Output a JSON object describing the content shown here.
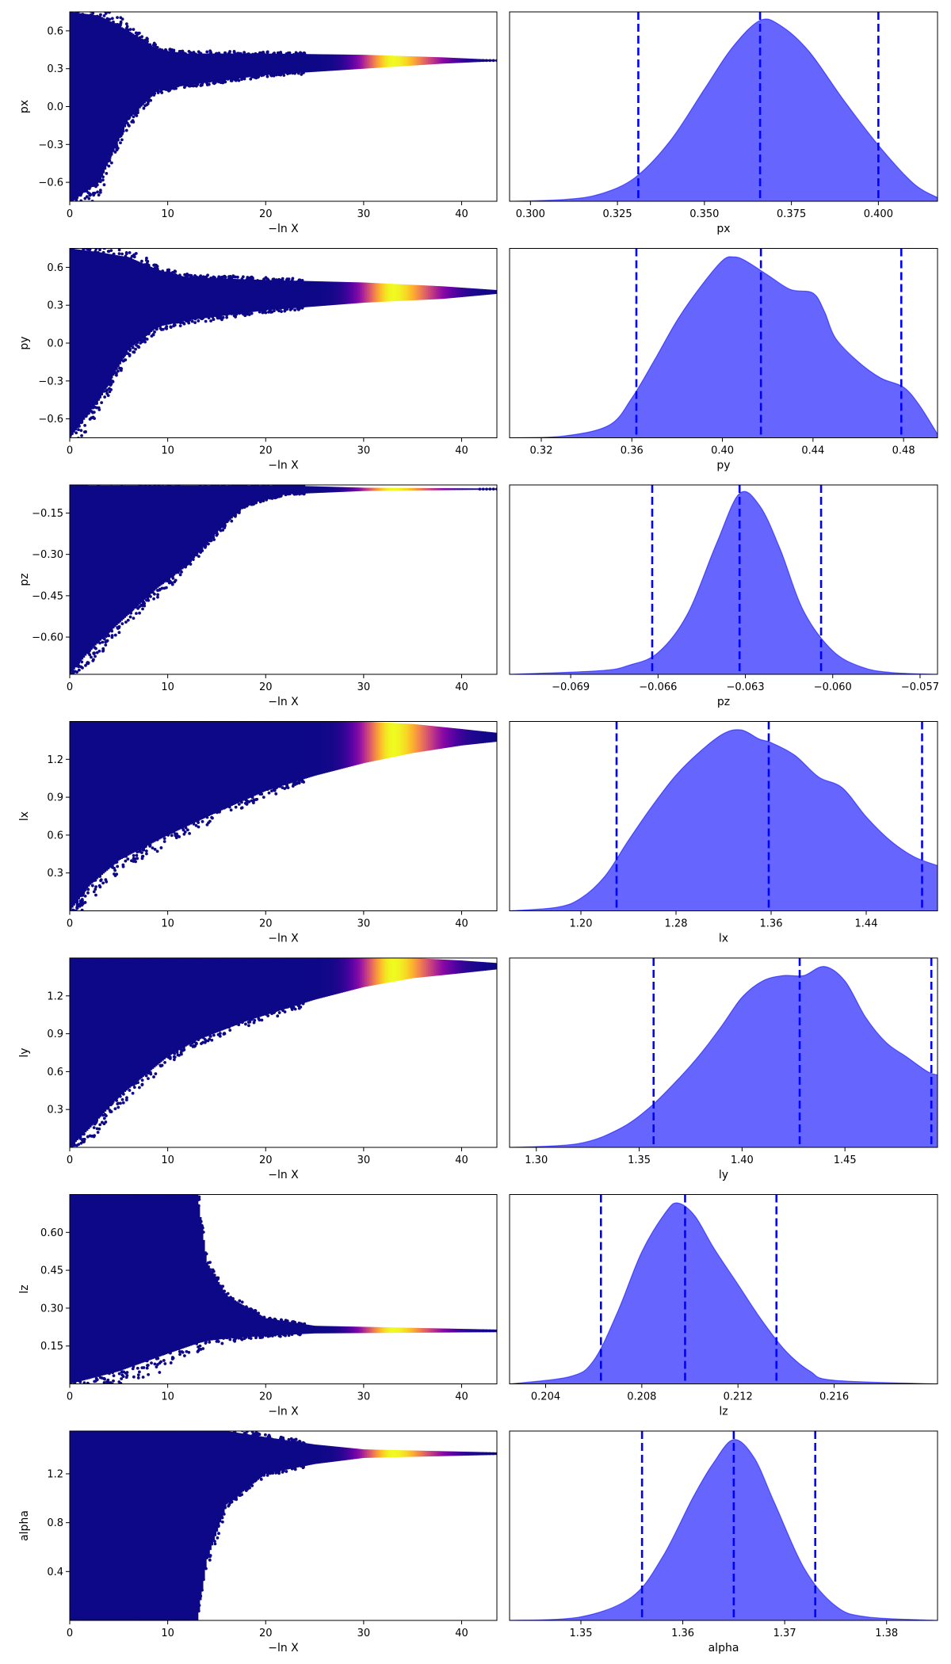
{
  "chart_data": [
    {
      "type": "scatter",
      "panel": "trace",
      "param": "px",
      "xlabel": "−ln X",
      "ylabel": "px",
      "xlim": [
        0,
        43.6
      ],
      "ylim": [
        -0.75,
        0.75
      ],
      "xticks": [
        0,
        10,
        20,
        30,
        40
      ],
      "xtick_labels": [
        "0",
        "10",
        "20",
        "30",
        "40"
      ],
      "yticks": [
        -0.6,
        -0.3,
        0.0,
        0.3,
        0.6
      ],
      "ytick_labels": [
        "−0.6",
        "−0.3",
        "0.0",
        "0.3",
        "0.6"
      ],
      "band": [
        [
          0,
          -0.75,
          0.75
        ],
        [
          3,
          -0.6,
          0.72
        ],
        [
          6,
          -0.1,
          0.6
        ],
        [
          9,
          0.13,
          0.45
        ],
        [
          12,
          0.17,
          0.42
        ],
        [
          20,
          0.25,
          0.42
        ],
        [
          30,
          0.3,
          0.41
        ],
        [
          38,
          0.34,
          0.39
        ],
        [
          43.6,
          0.36,
          0.37
        ]
      ],
      "colormap": "plasma",
      "density_peak_x": 33
    },
    {
      "type": "area",
      "panel": "marginal",
      "param": "px",
      "xlabel": "px",
      "xlim": [
        0.294,
        0.417
      ],
      "xticks": [
        0.3,
        0.325,
        0.35,
        0.375,
        0.4
      ],
      "xtick_labels": [
        "0.300",
        "0.325",
        "0.350",
        "0.375",
        "0.400"
      ],
      "x": [
        0.294,
        0.31,
        0.32,
        0.33,
        0.34,
        0.35,
        0.358,
        0.366,
        0.372,
        0.38,
        0.39,
        0.4,
        0.41,
        0.417
      ],
      "y": [
        0.0,
        0.01,
        0.04,
        0.13,
        0.33,
        0.62,
        0.85,
        1.0,
        0.97,
        0.83,
        0.56,
        0.31,
        0.1,
        0.02
      ],
      "quantiles": [
        0.331,
        0.366,
        0.4
      ],
      "fill_color": "#6666ff",
      "line_color": "#0000ff"
    },
    {
      "type": "scatter",
      "panel": "trace",
      "param": "py",
      "xlabel": "−ln X",
      "ylabel": "py",
      "xlim": [
        0,
        43.6
      ],
      "ylim": [
        -0.75,
        0.75
      ],
      "xticks": [
        0,
        10,
        20,
        30,
        40
      ],
      "xtick_labels": [
        "0",
        "10",
        "20",
        "30",
        "40"
      ],
      "yticks": [
        -0.6,
        -0.3,
        0.0,
        0.3,
        0.6
      ],
      "ytick_labels": [
        "−0.6",
        "−0.3",
        "0.0",
        "0.3",
        "0.6"
      ],
      "band": [
        [
          0,
          -0.75,
          0.75
        ],
        [
          3,
          -0.45,
          0.72
        ],
        [
          6,
          -0.05,
          0.68
        ],
        [
          9,
          0.13,
          0.58
        ],
        [
          12,
          0.18,
          0.52
        ],
        [
          20,
          0.26,
          0.5
        ],
        [
          30,
          0.32,
          0.48
        ],
        [
          38,
          0.35,
          0.45
        ],
        [
          43.6,
          0.39,
          0.42
        ]
      ],
      "colormap": "plasma",
      "density_peak_x": 33
    },
    {
      "type": "area",
      "panel": "marginal",
      "param": "py",
      "xlabel": "py",
      "xlim": [
        0.306,
        0.495
      ],
      "xticks": [
        0.32,
        0.36,
        0.4,
        0.44,
        0.48
      ],
      "xtick_labels": [
        "0.32",
        "0.36",
        "0.40",
        "0.44",
        "0.48"
      ],
      "x": [
        0.306,
        0.33,
        0.35,
        0.36,
        0.37,
        0.38,
        0.39,
        0.4,
        0.405,
        0.41,
        0.42,
        0.43,
        0.44,
        0.445,
        0.45,
        0.46,
        0.47,
        0.48,
        0.487,
        0.495
      ],
      "y": [
        0.0,
        0.01,
        0.07,
        0.22,
        0.43,
        0.65,
        0.83,
        0.98,
        1.0,
        0.98,
        0.9,
        0.82,
        0.8,
        0.7,
        0.55,
        0.42,
        0.33,
        0.28,
        0.18,
        0.02
      ],
      "quantiles": [
        0.362,
        0.417,
        0.479
      ],
      "fill_color": "#6666ff",
      "line_color": "#0000ff"
    },
    {
      "type": "scatter",
      "panel": "trace",
      "param": "pz",
      "xlabel": "−ln X",
      "ylabel": "pz",
      "xlim": [
        0,
        43.6
      ],
      "ylim": [
        -0.735,
        -0.048
      ],
      "xticks": [
        0,
        10,
        20,
        30,
        40
      ],
      "xtick_labels": [
        "0",
        "10",
        "20",
        "30",
        "40"
      ],
      "yticks": [
        -0.6,
        -0.45,
        -0.3,
        -0.15
      ],
      "ytick_labels": [
        "−0.60",
        "−0.45",
        "−0.30",
        "−0.15"
      ],
      "band": [
        [
          0,
          -0.735,
          -0.048
        ],
        [
          2,
          -0.65,
          -0.05
        ],
        [
          5,
          -0.55,
          -0.05
        ],
        [
          9,
          -0.42,
          -0.05
        ],
        [
          12,
          -0.34,
          -0.05
        ],
        [
          15,
          -0.22,
          -0.05
        ],
        [
          18,
          -0.12,
          -0.05
        ],
        [
          22,
          -0.082,
          -0.05
        ],
        [
          30,
          -0.07,
          -0.058
        ],
        [
          43.6,
          -0.065,
          -0.061
        ]
      ],
      "colormap": "plasma",
      "density_peak_x": 33
    },
    {
      "type": "area",
      "panel": "marginal",
      "param": "pz",
      "xlabel": "pz",
      "xlim": [
        -0.0711,
        -0.0564
      ],
      "xticks": [
        -0.069,
        -0.066,
        -0.063,
        -0.06,
        -0.057
      ],
      "xtick_labels": [
        "−0.069",
        "−0.066",
        "−0.063",
        "−0.060",
        "−0.057"
      ],
      "x": [
        -0.0711,
        -0.068,
        -0.067,
        -0.066,
        -0.065,
        -0.064,
        -0.0632,
        -0.0625,
        -0.0618,
        -0.061,
        -0.06,
        -0.059,
        -0.058,
        -0.0564
      ],
      "y": [
        0.0,
        0.02,
        0.05,
        0.12,
        0.33,
        0.72,
        1.0,
        0.93,
        0.69,
        0.35,
        0.13,
        0.04,
        0.01,
        0.0
      ],
      "quantiles": [
        -0.0662,
        -0.0632,
        -0.0604
      ],
      "fill_color": "#6666ff",
      "line_color": "#0000ff"
    },
    {
      "type": "scatter",
      "panel": "trace",
      "param": "lx",
      "xlabel": "−ln X",
      "ylabel": "lx",
      "xlim": [
        0,
        43.6
      ],
      "ylim": [
        0,
        1.5
      ],
      "xticks": [
        0,
        10,
        20,
        30,
        40
      ],
      "xtick_labels": [
        "0",
        "10",
        "20",
        "30",
        "40"
      ],
      "yticks": [
        0.3,
        0.6,
        0.9,
        1.2
      ],
      "ytick_labels": [
        "0.3",
        "0.6",
        "0.9",
        "1.2"
      ],
      "band": [
        [
          0,
          0.0,
          1.5
        ],
        [
          2,
          0.2,
          1.5
        ],
        [
          5,
          0.4,
          1.5
        ],
        [
          10,
          0.6,
          1.5
        ],
        [
          15,
          0.78,
          1.5
        ],
        [
          20,
          0.95,
          1.5
        ],
        [
          25,
          1.07,
          1.5
        ],
        [
          30,
          1.17,
          1.5
        ],
        [
          35,
          1.25,
          1.48
        ],
        [
          40,
          1.31,
          1.44
        ],
        [
          43.6,
          1.34,
          1.41
        ]
      ],
      "colormap": "plasma",
      "density_peak_x": 33
    },
    {
      "type": "area",
      "panel": "marginal",
      "param": "lx",
      "xlabel": "lx",
      "xlim": [
        1.14,
        1.5
      ],
      "xticks": [
        1.2,
        1.28,
        1.36,
        1.44
      ],
      "xtick_labels": [
        "1.20",
        "1.28",
        "1.36",
        "1.44"
      ],
      "x": [
        1.14,
        1.18,
        1.2,
        1.22,
        1.24,
        1.26,
        1.28,
        1.3,
        1.32,
        1.335,
        1.35,
        1.36,
        1.38,
        1.4,
        1.42,
        1.44,
        1.46,
        1.48,
        1.5
      ],
      "y": [
        0.0,
        0.02,
        0.07,
        0.19,
        0.39,
        0.58,
        0.75,
        0.88,
        0.98,
        1.0,
        0.95,
        0.93,
        0.86,
        0.74,
        0.68,
        0.52,
        0.39,
        0.3,
        0.25
      ],
      "quantiles": [
        1.23,
        1.358,
        1.487
      ],
      "fill_color": "#6666ff",
      "line_color": "#0000ff"
    },
    {
      "type": "scatter",
      "panel": "trace",
      "param": "ly",
      "xlabel": "−ln X",
      "ylabel": "ly",
      "xlim": [
        0,
        43.6
      ],
      "ylim": [
        0,
        1.5
      ],
      "xticks": [
        0,
        10,
        20,
        30,
        40
      ],
      "xtick_labels": [
        "0",
        "10",
        "20",
        "30",
        "40"
      ],
      "yticks": [
        0.3,
        0.6,
        0.9,
        1.2
      ],
      "ytick_labels": [
        "0.3",
        "0.6",
        "0.9",
        "1.2"
      ],
      "band": [
        [
          0,
          0.0,
          1.5
        ],
        [
          2,
          0.15,
          1.5
        ],
        [
          5,
          0.4,
          1.5
        ],
        [
          10,
          0.72,
          1.5
        ],
        [
          13,
          0.85,
          1.5
        ],
        [
          18,
          1.0,
          1.5
        ],
        [
          25,
          1.17,
          1.5
        ],
        [
          30,
          1.27,
          1.5
        ],
        [
          35,
          1.34,
          1.5
        ],
        [
          40,
          1.38,
          1.48
        ],
        [
          43.6,
          1.41,
          1.46
        ]
      ],
      "colormap": "plasma",
      "density_peak_x": 33
    },
    {
      "type": "area",
      "panel": "marginal",
      "param": "ly",
      "xlabel": "ly",
      "xlim": [
        1.287,
        1.495
      ],
      "xticks": [
        1.3,
        1.35,
        1.4,
        1.45
      ],
      "xtick_labels": [
        "1.30",
        "1.35",
        "1.40",
        "1.45"
      ],
      "x": [
        1.287,
        1.32,
        1.34,
        1.355,
        1.37,
        1.38,
        1.39,
        1.4,
        1.41,
        1.42,
        1.43,
        1.44,
        1.45,
        1.46,
        1.47,
        1.48,
        1.49,
        1.495
      ],
      "y": [
        0.0,
        0.02,
        0.1,
        0.22,
        0.39,
        0.52,
        0.67,
        0.83,
        0.92,
        0.95,
        0.95,
        1.0,
        0.92,
        0.72,
        0.58,
        0.5,
        0.42,
        0.4
      ],
      "quantiles": [
        1.357,
        1.428,
        1.492
      ],
      "fill_color": "#6666ff",
      "line_color": "#0000ff"
    },
    {
      "type": "scatter",
      "panel": "trace",
      "param": "lz",
      "xlabel": "−ln X",
      "ylabel": "lz",
      "xlim": [
        0,
        43.6
      ],
      "ylim": [
        0,
        0.75
      ],
      "xticks": [
        0,
        10,
        20,
        30,
        40
      ],
      "xtick_labels": [
        "0",
        "10",
        "20",
        "30",
        "40"
      ],
      "yticks": [
        0.15,
        0.3,
        0.45,
        0.6
      ],
      "ytick_labels": [
        "0.15",
        "0.30",
        "0.45",
        "0.60"
      ],
      "band": [
        [
          0,
          0.0,
          0.75
        ],
        [
          5,
          0.05,
          0.75
        ],
        [
          10,
          0.12,
          0.75
        ],
        [
          13,
          0.16,
          0.75
        ],
        [
          14,
          0.17,
          0.48
        ],
        [
          16,
          0.18,
          0.35
        ],
        [
          20,
          0.19,
          0.26
        ],
        [
          25,
          0.2,
          0.23
        ],
        [
          43.6,
          0.205,
          0.215
        ]
      ],
      "colormap": "plasma",
      "density_peak_x": 33
    },
    {
      "type": "area",
      "panel": "marginal",
      "param": "lz",
      "xlabel": "lz",
      "xlim": [
        0.2025,
        0.2203
      ],
      "xticks": [
        0.204,
        0.208,
        0.212,
        0.216
      ],
      "xtick_labels": [
        "0.204",
        "0.208",
        "0.212",
        "0.216"
      ],
      "x": [
        0.2025,
        0.205,
        0.206,
        0.207,
        0.208,
        0.209,
        0.2095,
        0.2102,
        0.211,
        0.212,
        0.213,
        0.214,
        0.215,
        0.216,
        0.2203
      ],
      "y": [
        0.0,
        0.04,
        0.13,
        0.4,
        0.73,
        0.95,
        1.0,
        0.93,
        0.75,
        0.55,
        0.35,
        0.18,
        0.07,
        0.02,
        0.0
      ],
      "quantiles": [
        0.2063,
        0.2098,
        0.2136
      ],
      "fill_color": "#6666ff",
      "line_color": "#0000ff"
    },
    {
      "type": "scatter",
      "panel": "trace",
      "param": "alpha",
      "xlabel": "−ln X",
      "ylabel": "alpha",
      "xlim": [
        0,
        43.6
      ],
      "ylim": [
        0,
        1.55
      ],
      "xticks": [
        0,
        10,
        20,
        30,
        40
      ],
      "xtick_labels": [
        "0",
        "10",
        "20",
        "30",
        "40"
      ],
      "yticks": [
        0.4,
        0.8,
        1.2
      ],
      "ytick_labels": [
        "0.4",
        "0.8",
        "1.2"
      ],
      "band": [
        [
          0,
          0.0,
          1.55
        ],
        [
          13,
          0.0,
          1.55
        ],
        [
          14,
          0.5,
          1.55
        ],
        [
          16,
          0.95,
          1.55
        ],
        [
          20,
          1.2,
          1.5
        ],
        [
          25,
          1.28,
          1.44
        ],
        [
          30,
          1.33,
          1.4
        ],
        [
          43.6,
          1.355,
          1.375
        ]
      ],
      "colormap": "plasma",
      "density_peak_x": 33
    },
    {
      "type": "area",
      "panel": "marginal",
      "param": "alpha",
      "xlabel": "alpha",
      "xlim": [
        1.343,
        1.385
      ],
      "xticks": [
        1.35,
        1.36,
        1.37,
        1.38
      ],
      "xtick_labels": [
        "1.35",
        "1.36",
        "1.37",
        "1.38"
      ],
      "x": [
        1.343,
        1.35,
        1.355,
        1.358,
        1.361,
        1.363,
        1.365,
        1.367,
        1.369,
        1.372,
        1.375,
        1.378,
        1.385
      ],
      "y": [
        0.0,
        0.02,
        0.13,
        0.35,
        0.68,
        0.87,
        1.0,
        0.9,
        0.65,
        0.28,
        0.08,
        0.02,
        0.0
      ],
      "quantiles": [
        1.356,
        1.365,
        1.373
      ],
      "fill_color": "#6666ff",
      "line_color": "#0000ff"
    }
  ]
}
